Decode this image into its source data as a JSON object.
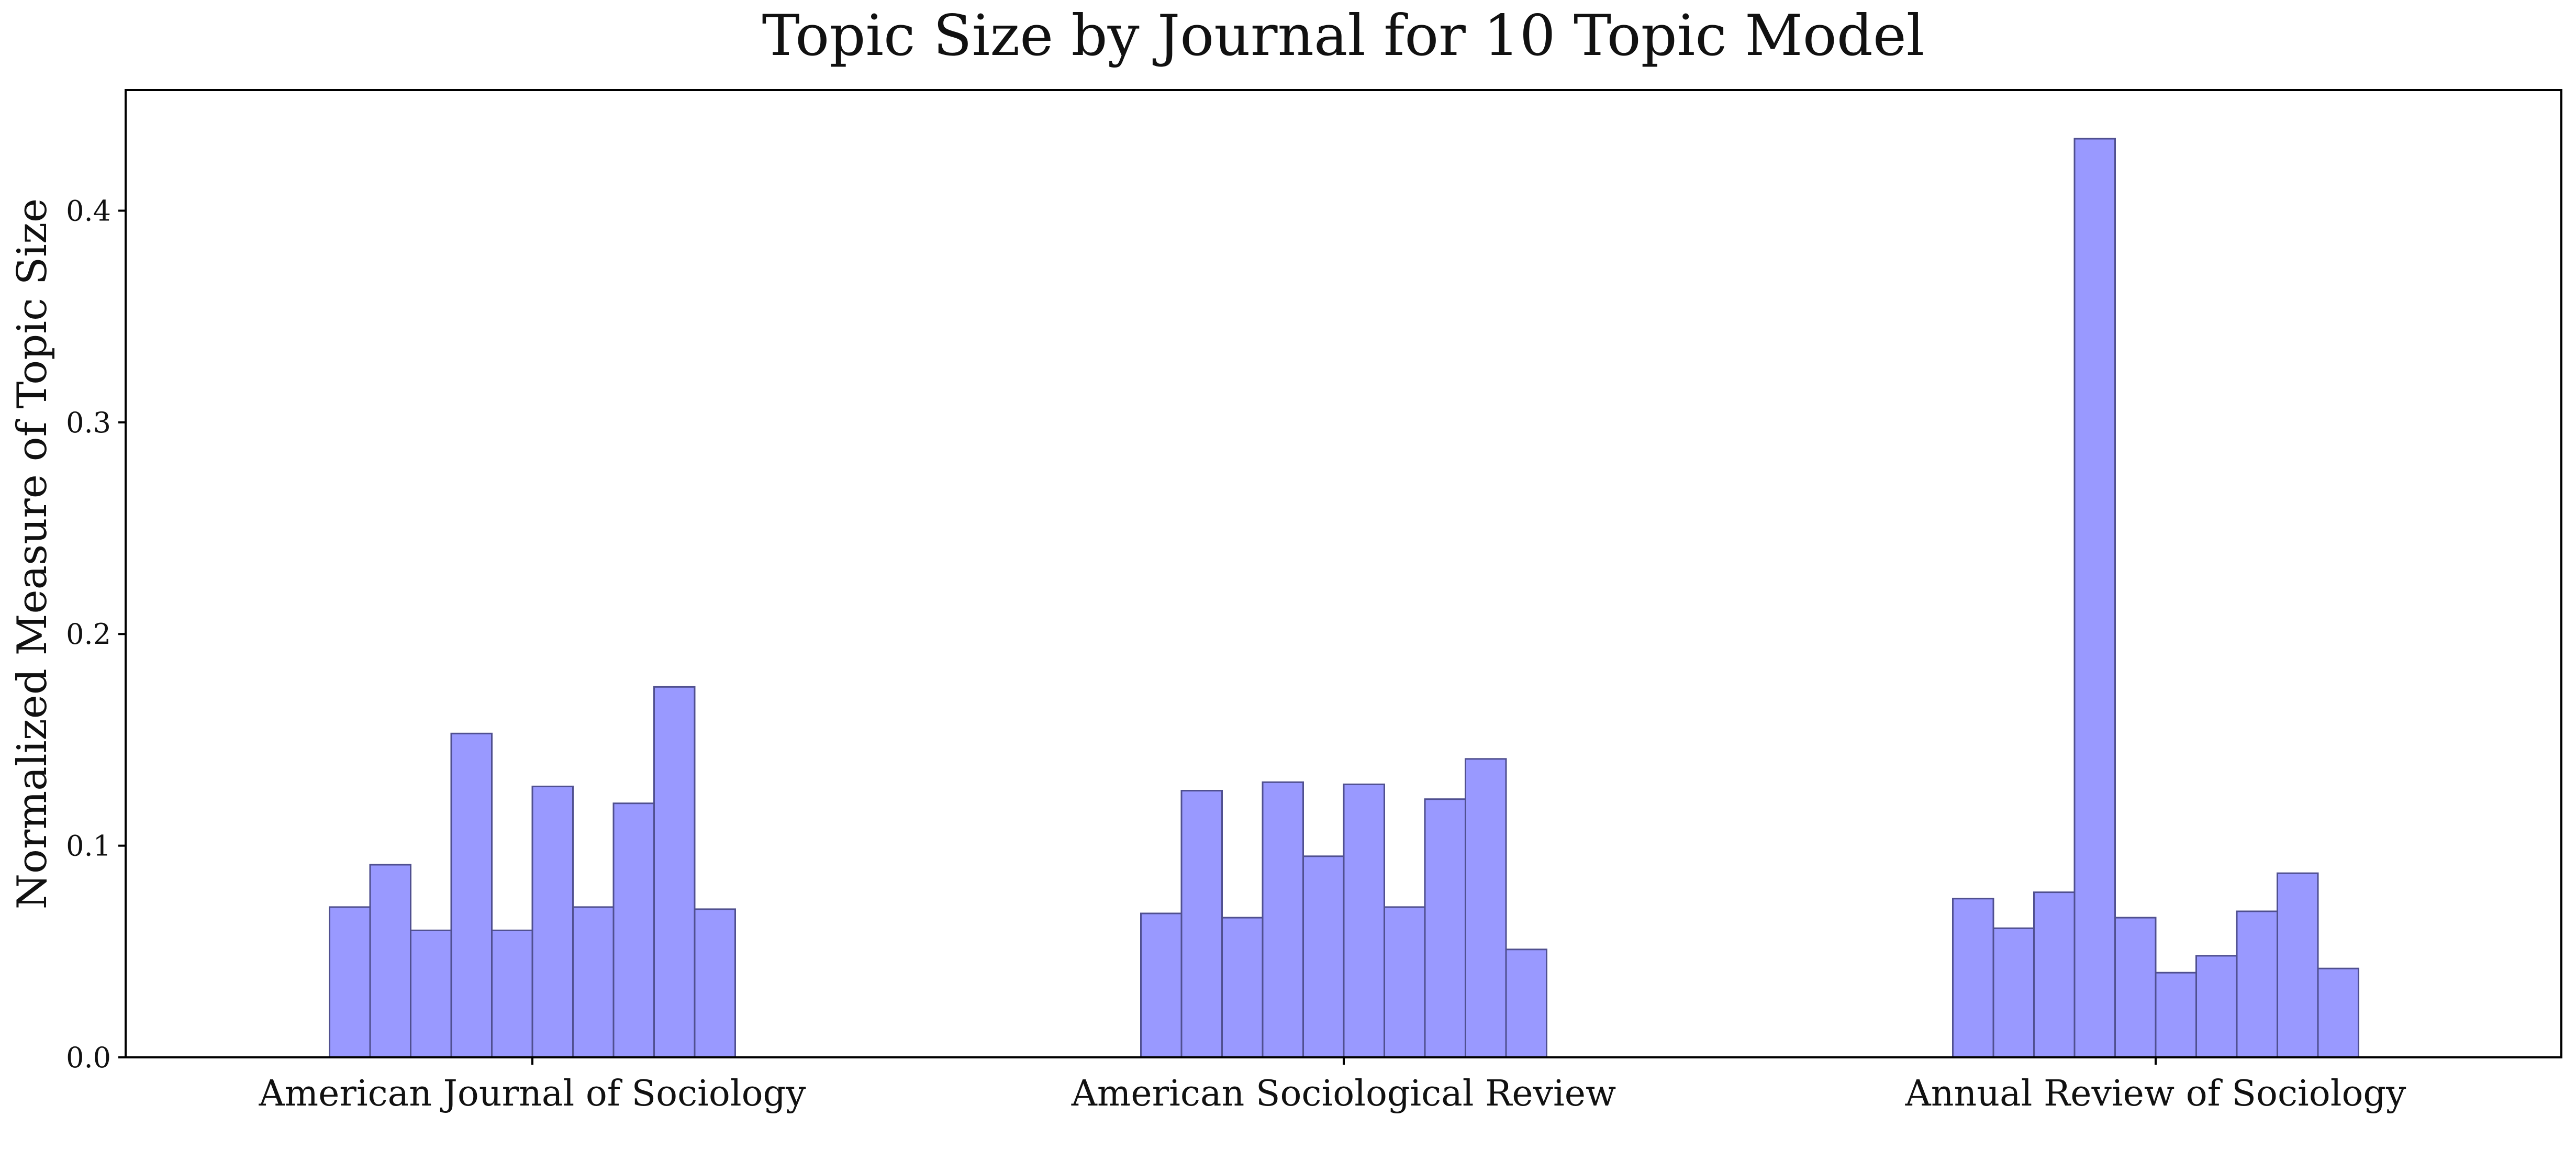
{
  "chart_data": {
    "type": "bar",
    "title": "Topic Size by Journal for 10 Topic Model",
    "xlabel": "",
    "ylabel": "Normalized Measure of Topic Size",
    "ylim": [
      0,
      0.457
    ],
    "yticks": [
      "0.0",
      "0.1",
      "0.2",
      "0.3",
      "0.4"
    ],
    "categories": [
      "American Journal of Sociology",
      "American Sociological Review",
      "Annual Review of Sociology"
    ],
    "groups": [
      {
        "category": "American Journal of Sociology",
        "values": [
          0.071,
          0.091,
          0.06,
          0.153,
          0.06,
          0.128,
          0.071,
          0.12,
          0.175,
          0.07
        ]
      },
      {
        "category": "American Sociological Review",
        "values": [
          0.068,
          0.126,
          0.066,
          0.13,
          0.095,
          0.129,
          0.071,
          0.122,
          0.141,
          0.051
        ]
      },
      {
        "category": "Annual Review of Sociology",
        "values": [
          0.075,
          0.061,
          0.078,
          0.434,
          0.066,
          0.04,
          0.048,
          0.069,
          0.087,
          0.042
        ]
      }
    ],
    "grid": false,
    "legend": "none",
    "colors": {
      "bar_fill": "#9999ff",
      "bar_stroke": "#505090"
    }
  }
}
